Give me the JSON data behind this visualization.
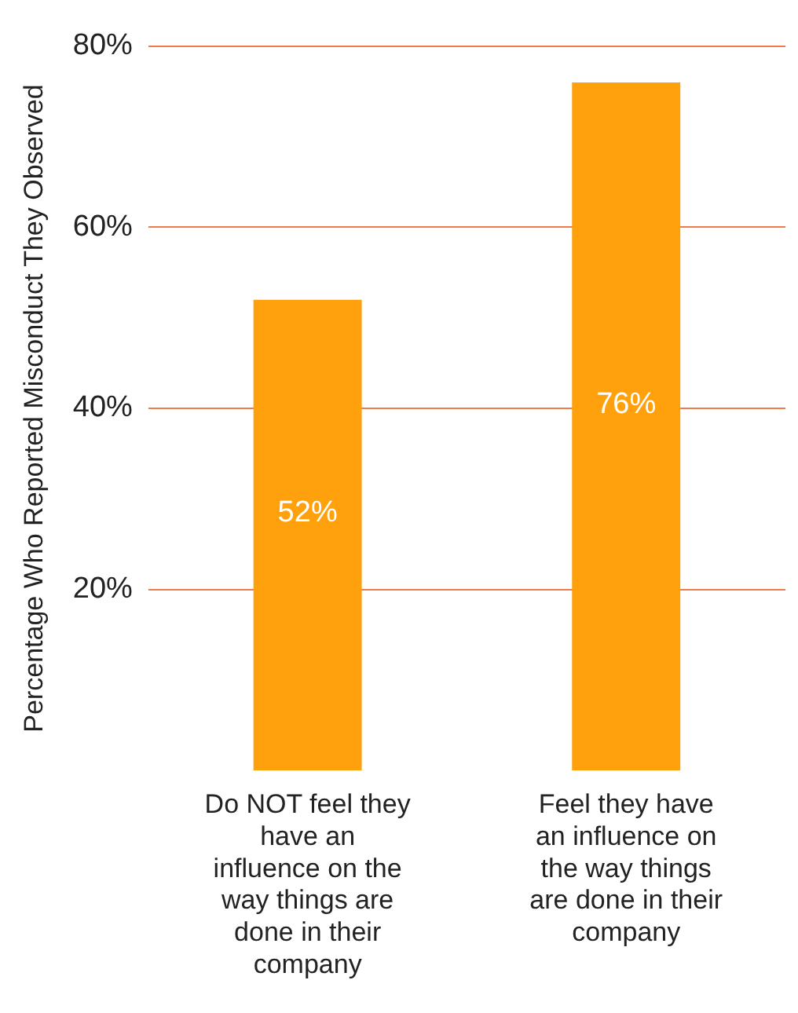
{
  "chart_data": {
    "type": "bar",
    "ylabel": "Percentage Who Reported Misconduct They Observed",
    "categories": [
      "Do NOT feel they have an influence on the way things are done in their company",
      "Feel they have an influence on the way things are done in their company"
    ],
    "values": [
      52,
      76
    ],
    "color": "#ffa10d",
    "ylim": [
      0,
      80
    ],
    "yticks": [
      {
        "value": 20,
        "label": "20%"
      },
      {
        "value": 40,
        "label": "40%"
      },
      {
        "value": 60,
        "label": "60%"
      },
      {
        "value": 80,
        "label": "80%"
      }
    ],
    "grid": "y",
    "value_labels": [
      "52%",
      "76%"
    ]
  }
}
